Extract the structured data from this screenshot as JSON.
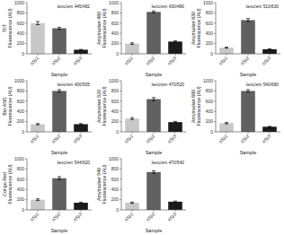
{
  "chart_data": [
    {
      "type": "bar",
      "ylabel": "ThT\nFluorescence (AU)",
      "xlabel": "Sample",
      "annotation": "λexc/em 445/482",
      "categories": [
        "αSy1",
        "αSy2",
        "αSy3"
      ],
      "values": [
        600,
        500,
        80
      ],
      "errors": [
        30,
        20,
        5
      ],
      "colors": [
        "#c8c8c8",
        "#606060",
        "#1a1a1a"
      ],
      "ylim": [
        0,
        1000
      ],
      "yticks": [
        0,
        200,
        400,
        600,
        800,
        1000
      ],
      "grid": false
    },
    {
      "type": "bar",
      "ylabel": "Amytracker 480\nFluorescence (AU)",
      "xlabel": "Sample",
      "annotation": "λexc/em 430/480",
      "categories": [
        "αSy1",
        "αSy2",
        "αSy3"
      ],
      "values": [
        200,
        820,
        240
      ],
      "errors": [
        15,
        20,
        15
      ],
      "colors": [
        "#c8c8c8",
        "#606060",
        "#1a1a1a"
      ],
      "ylim": [
        0,
        1000
      ],
      "yticks": [
        0,
        200,
        400,
        600,
        800,
        1000
      ],
      "grid": false
    },
    {
      "type": "bar",
      "ylabel": "Amytracker 630\nFluorescence (AU)",
      "xlabel": "Sample",
      "annotation": "λexc/em 510/630",
      "categories": [
        "αSy1",
        "αSy2",
        "αSy3"
      ],
      "values": [
        120,
        660,
        90
      ],
      "errors": [
        10,
        30,
        8
      ],
      "colors": [
        "#c8c8c8",
        "#606060",
        "#1a1a1a"
      ],
      "ylim": [
        0,
        1000
      ],
      "yticks": [
        0,
        200,
        400,
        600,
        800,
        1000
      ],
      "grid": false
    },
    {
      "type": "bar",
      "ylabel": "Bio-ANS\nFluorescence (AU)",
      "xlabel": "Sample",
      "annotation": "λexc/em 400/505",
      "categories": [
        "αSy1",
        "αSy2",
        "αSy3"
      ],
      "values": [
        150,
        800,
        150
      ],
      "errors": [
        12,
        25,
        12
      ],
      "colors": [
        "#c8c8c8",
        "#606060",
        "#1a1a1a"
      ],
      "ylim": [
        0,
        1000
      ],
      "yticks": [
        0,
        200,
        400,
        600,
        800,
        1000
      ],
      "grid": false
    },
    {
      "type": "bar",
      "ylabel": "Amytracker 520\nFluorescence (AU)",
      "xlabel": "Sample",
      "annotation": "λexc/em 470/520",
      "categories": [
        "αSy1",
        "αSy2",
        "αSy3"
      ],
      "values": [
        260,
        640,
        190
      ],
      "errors": [
        18,
        30,
        15
      ],
      "colors": [
        "#c8c8c8",
        "#606060",
        "#1a1a1a"
      ],
      "ylim": [
        0,
        1000
      ],
      "yticks": [
        0,
        200,
        400,
        600,
        800,
        1000
      ],
      "grid": false
    },
    {
      "type": "bar",
      "ylabel": "Amytracker 680\nFluorescence (AU)",
      "xlabel": "Sample",
      "annotation": "λexc/em 540/680",
      "categories": [
        "αSy1",
        "αSy2",
        "αSy3"
      ],
      "values": [
        170,
        800,
        100
      ],
      "errors": [
        12,
        25,
        8
      ],
      "colors": [
        "#c8c8c8",
        "#606060",
        "#1a1a1a"
      ],
      "ylim": [
        0,
        1000
      ],
      "yticks": [
        0,
        200,
        400,
        600,
        800,
        1000
      ],
      "grid": false
    },
    {
      "type": "bar",
      "ylabel": "Congo Red\nFluorescence (AU)",
      "xlabel": "Sample",
      "annotation": "λexc/em 544/620",
      "categories": [
        "αSy1",
        "αSy2",
        "αSy3"
      ],
      "values": [
        200,
        620,
        140
      ],
      "errors": [
        15,
        30,
        12
      ],
      "colors": [
        "#c8c8c8",
        "#606060",
        "#1a1a1a"
      ],
      "ylim": [
        0,
        1000
      ],
      "yticks": [
        0,
        200,
        400,
        600,
        800,
        1000
      ],
      "grid": false
    },
    {
      "type": "bar",
      "ylabel": "Amytracker 540\nFluorescence (AU)",
      "xlabel": "Sample",
      "annotation": "λexc/em 470/540",
      "categories": [
        "αSy1",
        "αSy2",
        "αSy3"
      ],
      "values": [
        140,
        740,
        160
      ],
      "errors": [
        12,
        25,
        12
      ],
      "colors": [
        "#c8c8c8",
        "#606060",
        "#1a1a1a"
      ],
      "ylim": [
        0,
        1000
      ],
      "yticks": [
        0,
        200,
        400,
        600,
        800,
        1000
      ],
      "grid": false
    }
  ]
}
